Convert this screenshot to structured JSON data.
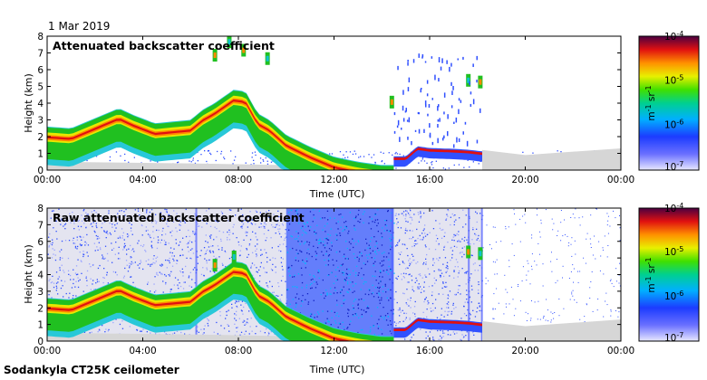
{
  "header": {
    "date": "1 Mar 2019"
  },
  "footer": {
    "caption": "Sodankyla CT25K ceilometer"
  },
  "colors": {
    "cloud_red": "#e01010",
    "cloud_orange": "#ff8800",
    "cloud_yellow": "#e8e800",
    "aerosol_green": "#20c020",
    "aerosol_cyan": "#10c0d0",
    "weak_blue": "#3050ff",
    "noise_gray": "#d6d6d6",
    "dark_top": "#6a0050"
  },
  "chart_data": [
    {
      "type": "heatmap",
      "title": "Attenuated backscatter coefficient",
      "xlabel": "Time (UTC)",
      "ylabel": "Height (km)",
      "xlim": [
        0,
        24
      ],
      "ylim": [
        0,
        8
      ],
      "x_ticks": [
        "00:00",
        "04:00",
        "08:00",
        "12:00",
        "16:00",
        "20:00",
        "00:00"
      ],
      "y_ticks": [
        "0",
        "1",
        "2",
        "3",
        "4",
        "5",
        "6",
        "7",
        "8"
      ],
      "colorbar": {
        "labels": [
          "10",
          "10",
          "10",
          "10"
        ],
        "exponents": [
          "-4",
          "-5",
          "-6",
          "-7"
        ],
        "unit_base": "m",
        "unit_exp1": "-1",
        "unit_mid": " sr",
        "unit_exp2": "-1"
      },
      "features": {
        "boundary_layer_top_km": [
          [
            0.0,
            2.6
          ],
          [
            1.0,
            2.5
          ],
          [
            2.0,
            3.1
          ],
          [
            3.0,
            3.7
          ],
          [
            3.6,
            3.3
          ],
          [
            4.5,
            2.8
          ],
          [
            6.0,
            3.0
          ],
          [
            6.5,
            3.6
          ],
          [
            7.0,
            4.0
          ],
          [
            7.8,
            4.8
          ],
          [
            8.3,
            4.7
          ],
          [
            8.8,
            3.4
          ],
          [
            9.3,
            3.0
          ],
          [
            10.0,
            2.1
          ],
          [
            11.0,
            1.4
          ],
          [
            12.0,
            0.8
          ],
          [
            13.0,
            0.5
          ],
          [
            14.0,
            0.3
          ],
          [
            14.5,
            0.3
          ]
        ],
        "low_cloud_base_km": [
          [
            14.5,
            0.7
          ],
          [
            15.0,
            0.7
          ],
          [
            15.5,
            1.3
          ],
          [
            16.0,
            1.2
          ],
          [
            17.0,
            1.15
          ],
          [
            17.6,
            1.1
          ],
          [
            18.2,
            1.0
          ]
        ],
        "cloud_fragments": [
          {
            "t": 7.0,
            "h": 6.7
          },
          {
            "t": 7.6,
            "h": 7.5
          },
          {
            "t": 8.2,
            "h": 7.0
          },
          {
            "t": 9.2,
            "h": 6.5
          },
          {
            "t": 14.4,
            "h": 3.9
          },
          {
            "t": 17.6,
            "h": 5.2
          },
          {
            "t": 18.1,
            "h": 5.1
          }
        ],
        "noise_region_utc": [
          [
            0.0,
            2.0
          ],
          [
            18.2,
            24.0
          ]
        ]
      }
    },
    {
      "type": "heatmap",
      "title": "Raw attenuated backscatter coefficient",
      "xlabel": "Time (UTC)",
      "ylabel": "Height (km)",
      "xlim": [
        0,
        24
      ],
      "ylim": [
        0,
        8
      ],
      "x_ticks": [
        "00:00",
        "04:00",
        "08:00",
        "12:00",
        "16:00",
        "20:00",
        "00:00"
      ],
      "y_ticks": [
        "0",
        "1",
        "2",
        "3",
        "4",
        "5",
        "6",
        "7",
        "8"
      ],
      "colorbar": {
        "labels": [
          "10",
          "10",
          "10",
          "10"
        ],
        "exponents": [
          "-4",
          "-5",
          "-6",
          "-7"
        ],
        "unit_base": "m",
        "unit_exp1": "-1",
        "unit_mid": " sr",
        "unit_exp2": "-1"
      },
      "features": {
        "boundary_layer_top_km": [
          [
            0.0,
            2.6
          ],
          [
            1.0,
            2.5
          ],
          [
            2.0,
            3.1
          ],
          [
            3.0,
            3.7
          ],
          [
            3.6,
            3.3
          ],
          [
            4.5,
            2.8
          ],
          [
            6.0,
            3.0
          ],
          [
            6.5,
            3.6
          ],
          [
            7.0,
            4.0
          ],
          [
            7.8,
            4.8
          ],
          [
            8.3,
            4.7
          ],
          [
            8.8,
            3.4
          ],
          [
            9.3,
            3.0
          ],
          [
            10.0,
            2.1
          ],
          [
            11.0,
            1.4
          ],
          [
            12.0,
            0.8
          ],
          [
            13.0,
            0.5
          ],
          [
            14.0,
            0.3
          ],
          [
            14.5,
            0.3
          ]
        ],
        "low_cloud_base_km": [
          [
            14.5,
            0.7
          ],
          [
            15.0,
            0.7
          ],
          [
            15.5,
            1.3
          ],
          [
            16.0,
            1.2
          ],
          [
            17.0,
            1.15
          ],
          [
            17.6,
            1.1
          ],
          [
            18.2,
            1.0
          ]
        ],
        "dense_noise_utc": [
          10.0,
          14.5
        ],
        "noise_region_utc": [
          [
            0.0,
            18.2
          ],
          [
            18.2,
            24.0
          ]
        ]
      }
    }
  ]
}
